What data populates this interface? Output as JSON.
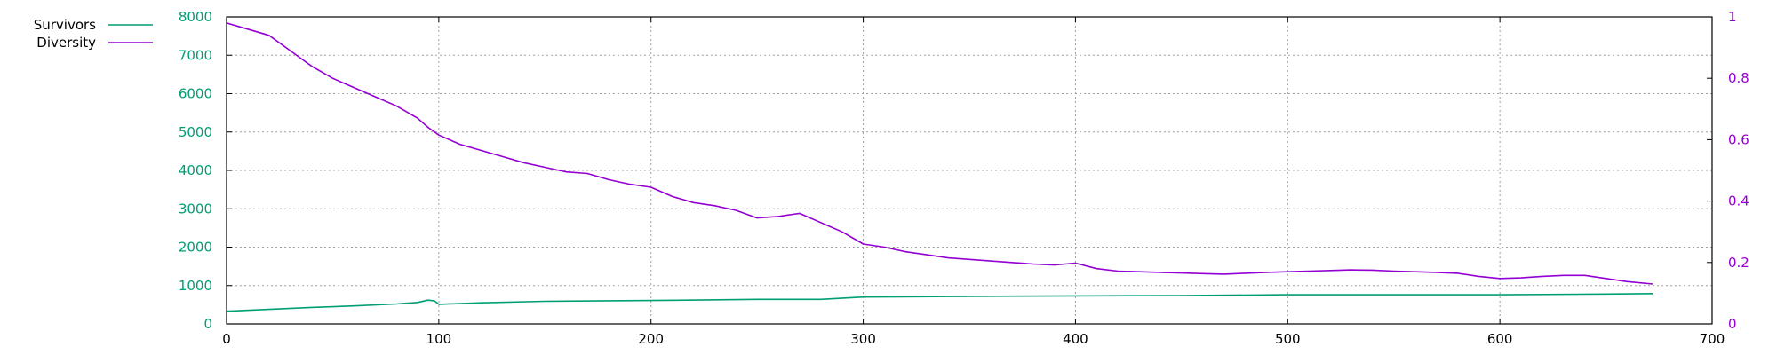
{
  "chart_data": {
    "type": "line",
    "title": "",
    "xlabel": "",
    "ylabel": "",
    "y2label": "",
    "xlim": [
      0,
      700
    ],
    "ylim": [
      0,
      8000
    ],
    "y2lim": [
      0,
      1
    ],
    "grid": true,
    "legend_position": "top-left",
    "x_ticks": [
      "0",
      "100",
      "200",
      "300",
      "400",
      "500",
      "600",
      "700"
    ],
    "y_ticks": [
      "0",
      "1000",
      "2000",
      "3000",
      "4000",
      "5000",
      "6000",
      "7000",
      "8000"
    ],
    "y2_ticks": [
      "0",
      "0.2",
      "0.4",
      "0.6",
      "0.8",
      "1"
    ],
    "colors": {
      "survivors": "#009e73",
      "diversity": "#9400d3",
      "grid": "#a0a0a0"
    },
    "series": [
      {
        "name": "Survivors",
        "axis": "y",
        "color": "#009e73",
        "x": [
          0,
          20,
          40,
          60,
          80,
          90,
          95,
          98,
          100,
          120,
          150,
          200,
          250,
          280,
          300,
          350,
          400,
          450,
          500,
          550,
          600,
          650,
          672
        ],
        "y": [
          330,
          380,
          430,
          470,
          520,
          560,
          620,
          600,
          510,
          550,
          590,
          610,
          640,
          640,
          700,
          720,
          730,
          740,
          760,
          760,
          760,
          780,
          790
        ]
      },
      {
        "name": "Diversity",
        "axis": "y2",
        "color": "#9400d3",
        "x": [
          0,
          10,
          20,
          30,
          40,
          50,
          60,
          70,
          80,
          90,
          95,
          100,
          110,
          120,
          130,
          140,
          150,
          160,
          170,
          180,
          190,
          200,
          210,
          220,
          230,
          240,
          250,
          260,
          270,
          280,
          290,
          300,
          310,
          320,
          330,
          340,
          350,
          360,
          370,
          380,
          390,
          400,
          410,
          420,
          430,
          440,
          450,
          460,
          470,
          480,
          490,
          500,
          510,
          520,
          530,
          540,
          550,
          560,
          570,
          580,
          590,
          600,
          610,
          620,
          630,
          640,
          650,
          660,
          672
        ],
        "y": [
          0.98,
          0.96,
          0.94,
          0.89,
          0.84,
          0.8,
          0.77,
          0.74,
          0.71,
          0.67,
          0.64,
          0.615,
          0.585,
          0.565,
          0.545,
          0.525,
          0.51,
          0.495,
          0.49,
          0.47,
          0.455,
          0.445,
          0.415,
          0.395,
          0.385,
          0.37,
          0.345,
          0.35,
          0.36,
          0.33,
          0.3,
          0.26,
          0.25,
          0.235,
          0.225,
          0.215,
          0.21,
          0.205,
          0.2,
          0.195,
          0.192,
          0.198,
          0.18,
          0.172,
          0.17,
          0.168,
          0.166,
          0.164,
          0.162,
          0.165,
          0.168,
          0.17,
          0.172,
          0.174,
          0.176,
          0.175,
          0.172,
          0.17,
          0.168,
          0.165,
          0.155,
          0.148,
          0.15,
          0.155,
          0.158,
          0.158,
          0.148,
          0.138,
          0.13
        ]
      }
    ]
  }
}
